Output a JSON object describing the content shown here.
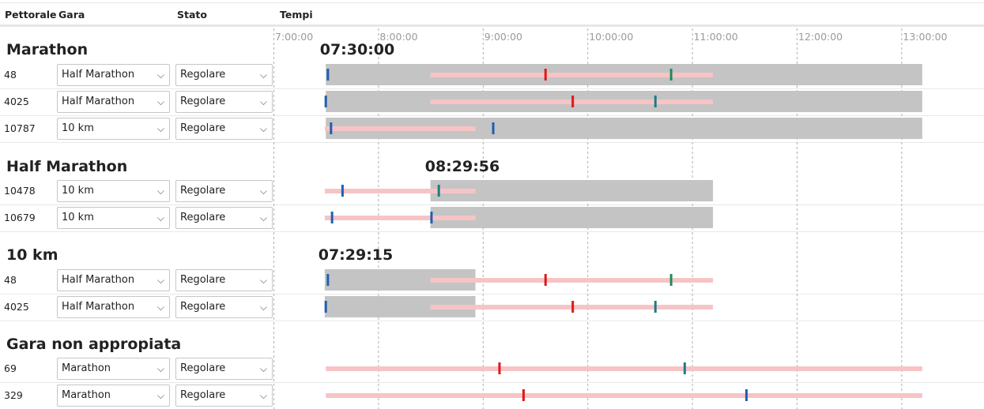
{
  "columns": {
    "bib": "Pettorale",
    "race": "Gara",
    "status": "Stato",
    "times": "Tempi"
  },
  "axis": {
    "ticks": [
      "7:00:00",
      "8:00:00",
      "9:00:00",
      "10:00:00",
      "11:00:00",
      "12:00:00",
      "13:00:00"
    ],
    "start_hours": 7.0,
    "end_hours": 13.0
  },
  "colors": {
    "window": "#c4c4c4",
    "track": "#f7c4c6",
    "mark_start": "#1f5fb0",
    "mark_red": "#e01818",
    "mark_green": "#1f8a5a",
    "mark_teal": "#1f7a88"
  },
  "chevron": "⌵",
  "sections": [
    {
      "title": "Marathon",
      "start_time": "07:30:00",
      "rows": [
        {
          "bib": "48",
          "race": "Half Marathon",
          "status": "Regolare"
        },
        {
          "bib": "4025",
          "race": "Half Marathon",
          "status": "Regolare"
        },
        {
          "bib": "10787",
          "race": "10 km",
          "status": "Regolare"
        }
      ]
    },
    {
      "title": "Half Marathon",
      "start_time": "08:29:56",
      "rows": [
        {
          "bib": "10478",
          "race": "10 km",
          "status": "Regolare"
        },
        {
          "bib": "10679",
          "race": "10 km",
          "status": "Regolare"
        }
      ]
    },
    {
      "title": "10 km",
      "start_time": "07:29:15",
      "rows": [
        {
          "bib": "48",
          "race": "Half Marathon",
          "status": "Regolare"
        },
        {
          "bib": "4025",
          "race": "Half Marathon",
          "status": "Regolare"
        }
      ]
    },
    {
      "title": "Gara non appropiata",
      "start_time": "",
      "rows": [
        {
          "bib": "69",
          "race": "Marathon",
          "status": "Regolare"
        },
        {
          "bib": "329",
          "race": "Marathon",
          "status": "Regolare"
        }
      ]
    }
  ],
  "chart_data": {
    "type": "timeline",
    "x_unit": "hours since 00:00",
    "xlim": [
      7.0,
      13.0
    ],
    "rows": [
      {
        "section": "Marathon",
        "bib": "48",
        "window": [
          7.5,
          13.2
        ],
        "tracks": [
          [
            8.5,
            11.2
          ]
        ],
        "marks": [
          {
            "t": 7.52,
            "c": "start"
          },
          {
            "t": 9.6,
            "c": "red"
          },
          {
            "t": 10.8,
            "c": "green"
          }
        ]
      },
      {
        "section": "Marathon",
        "bib": "4025",
        "window": [
          7.5,
          13.2
        ],
        "tracks": [
          [
            8.5,
            11.2
          ]
        ],
        "marks": [
          {
            "t": 7.5,
            "c": "start"
          },
          {
            "t": 9.86,
            "c": "red"
          },
          {
            "t": 10.65,
            "c": "teal"
          }
        ]
      },
      {
        "section": "Marathon",
        "bib": "10787",
        "window": [
          7.5,
          13.2
        ],
        "tracks": [
          [
            7.49,
            8.93
          ]
        ],
        "marks": [
          {
            "t": 7.55,
            "c": "start"
          },
          {
            "t": 9.1,
            "c": "start"
          }
        ]
      },
      {
        "section": "Half Marathon",
        "bib": "10478",
        "window": [
          8.5,
          11.2
        ],
        "tracks": [
          [
            7.49,
            8.93
          ]
        ],
        "marks": [
          {
            "t": 7.66,
            "c": "start"
          },
          {
            "t": 8.58,
            "c": "teal"
          }
        ]
      },
      {
        "section": "Half Marathon",
        "bib": "10679",
        "window": [
          8.5,
          11.2
        ],
        "tracks": [
          [
            7.49,
            8.93
          ]
        ],
        "marks": [
          {
            "t": 7.56,
            "c": "start"
          },
          {
            "t": 8.51,
            "c": "start"
          }
        ]
      },
      {
        "section": "10 km",
        "bib": "48",
        "window": [
          7.49,
          8.93
        ],
        "tracks": [
          [
            8.5,
            11.2
          ]
        ],
        "marks": [
          {
            "t": 7.52,
            "c": "start"
          },
          {
            "t": 9.6,
            "c": "red"
          },
          {
            "t": 10.8,
            "c": "green"
          }
        ]
      },
      {
        "section": "10 km",
        "bib": "4025",
        "window": [
          7.49,
          8.93
        ],
        "tracks": [
          [
            8.5,
            11.2
          ]
        ],
        "marks": [
          {
            "t": 7.5,
            "c": "start"
          },
          {
            "t": 9.86,
            "c": "red"
          },
          {
            "t": 10.65,
            "c": "teal"
          }
        ]
      },
      {
        "section": "Gara non appropiata",
        "bib": "69",
        "window": null,
        "tracks": [
          [
            7.5,
            13.2
          ]
        ],
        "marks": [
          {
            "t": 9.16,
            "c": "red"
          },
          {
            "t": 10.93,
            "c": "teal"
          }
        ]
      },
      {
        "section": "Gara non appropiata",
        "bib": "329",
        "window": null,
        "tracks": [
          [
            7.5,
            13.2
          ]
        ],
        "marks": [
          {
            "t": 9.39,
            "c": "red"
          },
          {
            "t": 11.52,
            "c": "start"
          }
        ]
      }
    ]
  }
}
